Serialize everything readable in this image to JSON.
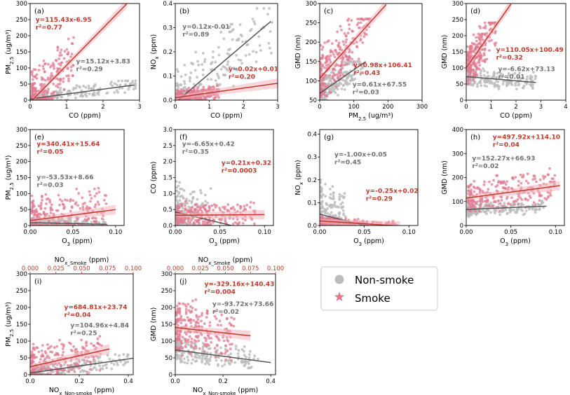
{
  "colors": {
    "smoke_point": "#e07a90",
    "smoke_line": "#c0392b",
    "nonsmoke_point": "#bcbcbc",
    "nonsmoke_line": "#555555",
    "smoke_text": "#c0392b",
    "nonsmoke_text": "#707070"
  },
  "legend": {
    "nonsmoke_label": "Non-smoke",
    "smoke_label": "Smoke"
  },
  "chart_data": [
    {
      "id": "a",
      "type": "scatter",
      "panel_label": "(a)",
      "xlabel": "CO (ppm)",
      "ylabel": "PM2.5 (ug/m³)",
      "ylabel_main": "PM",
      "ylabel_sub": "2.5",
      "ylabel_rest": " (ug/m³)",
      "xlim": [
        0,
        3
      ],
      "ylim": [
        0,
        300
      ],
      "xticks": [
        "0",
        "1",
        "2",
        "3"
      ],
      "yticks": [
        "0",
        "50",
        "100",
        "150",
        "200",
        "250",
        "300"
      ],
      "smoke": {
        "slope": 115.43,
        "intercept": -6.95,
        "line_x": [
          0.06,
          2.65
        ],
        "eq": "y=115.43x-6.95",
        "r2": "r²=0.77",
        "cloud": {
          "x": [
            0.05,
            1.2
          ],
          "ymin": 5,
          "ymax": 240
        }
      },
      "nonsmoke": {
        "slope": 15.12,
        "intercept": 3.83,
        "line_x": [
          0,
          2.85
        ],
        "eq": "y=15.12x+3.83",
        "r2": "r²=0.29",
        "cloud": {
          "x": [
            0.02,
            2.9
          ],
          "ymin": 0,
          "ymax": 60
        }
      }
    },
    {
      "id": "b",
      "type": "scatter",
      "panel_label": "(b)",
      "xlabel": "CO (ppm)",
      "ylabel": "NOx (ppm)",
      "ylabel_main": "NO",
      "ylabel_sub": "x",
      "ylabel_rest": " (ppm)",
      "xlim": [
        0,
        3
      ],
      "ylim": [
        0,
        0.4
      ],
      "xticks": [
        "0",
        "1",
        "2",
        "3"
      ],
      "yticks": [
        "0.0",
        "0.1",
        "0.2",
        "0.3",
        "0.4"
      ],
      "smoke": {
        "slope": 0.02,
        "intercept": 0.01,
        "line_x": [
          0,
          3
        ],
        "eq": "y=0.02x+0.01",
        "r2": "r²=0.20",
        "cloud": {
          "x": [
            0.05,
            1.3
          ],
          "ymin": 0,
          "ymax": 0.08
        }
      },
      "nonsmoke": {
        "slope": 0.12,
        "intercept": -0.01,
        "line_x": [
          0.1,
          2.8
        ],
        "eq": "y=0.12x-0.01",
        "r2": "r²=0.89",
        "cloud": {
          "x": [
            0.05,
            2.9
          ],
          "ymin": 0,
          "ymax": 0.38
        }
      }
    },
    {
      "id": "c",
      "type": "scatter",
      "panel_label": "(c)",
      "xlabel": "PM2.5 (ug/m³)",
      "xlabel_main": "PM",
      "xlabel_sub": "2.5",
      "xlabel_rest": " (ug/m³)",
      "ylabel": "GMD (nm)",
      "xlim": [
        0,
        300
      ],
      "ylim": [
        50,
        300
      ],
      "xticks": [
        "0",
        "100",
        "200",
        "300"
      ],
      "yticks": [
        "50",
        "100",
        "150",
        "200",
        "250",
        "300"
      ],
      "smoke": {
        "slope": 0.98,
        "intercept": 106.41,
        "line_x": [
          0,
          195
        ],
        "eq": "y=0.98x+106.41",
        "r2": "r²=0.43",
        "cloud": {
          "x": [
            2,
            150
          ],
          "ymin": 60,
          "ymax": 260
        }
      },
      "nonsmoke": {
        "slope": 0.61,
        "intercept": 67.55,
        "line_x": [
          0,
          135
        ],
        "eq": "y=0.61x+67.55",
        "r2": "r²=0.03",
        "cloud": {
          "x": [
            2,
            130
          ],
          "ymin": 50,
          "ymax": 150
        }
      }
    },
    {
      "id": "d",
      "type": "scatter",
      "panel_label": "(d)",
      "xlabel": "CO (ppm)",
      "ylabel": "GMD (nm)",
      "xlim": [
        0,
        4
      ],
      "ylim": [
        0,
        300
      ],
      "xticks": [
        "0",
        "1",
        "2",
        "3",
        "4"
      ],
      "yticks": [
        "0",
        "50",
        "100",
        "150",
        "200",
        "250",
        "300"
      ],
      "smoke": {
        "slope": 110.05,
        "intercept": 100.49,
        "line_x": [
          0,
          1.8
        ],
        "eq": "y=110.05x+100.49",
        "r2": "r²=0.32",
        "cloud": {
          "x": [
            0.05,
            1.2
          ],
          "ymin": 50,
          "ymax": 240
        }
      },
      "nonsmoke": {
        "slope": -6.62,
        "intercept": 73.13,
        "line_x": [
          0,
          2.8
        ],
        "eq": "y=-6.62x+73.13",
        "r2": "r²=0.01",
        "cloud": {
          "x": [
            0.05,
            2.8
          ],
          "ymin": 30,
          "ymax": 110
        }
      }
    },
    {
      "id": "e",
      "type": "scatter",
      "panel_label": "(e)",
      "xlabel": "O3 (ppm)",
      "xlabel_main": "O",
      "xlabel_sub": "3",
      "xlabel_rest": " (ppm)",
      "ylabel": "PM2.5 (ug/m³)",
      "ylabel_main": "PM",
      "ylabel_sub": "2.5",
      "ylabel_rest": " (ug/m³)",
      "xlim": [
        0,
        0.11
      ],
      "ylim": [
        0,
        300
      ],
      "xticks": [
        "0.00",
        "0.05",
        "0.10"
      ],
      "xtick_vals": [
        0,
        0.05,
        0.1
      ],
      "yticks": [
        "0",
        "50",
        "100",
        "150",
        "200",
        "250",
        "300"
      ],
      "smoke": {
        "slope": 340.41,
        "intercept": 15.64,
        "line_x": [
          0,
          0.1
        ],
        "eq": "y=340.41x+15.64",
        "r2": "r²=0.05",
        "cloud": {
          "x": [
            0.002,
            0.09
          ],
          "ymin": 0,
          "ymax": 200
        }
      },
      "nonsmoke": {
        "slope": -53.53,
        "intercept": 8.66,
        "line_x": [
          0,
          0.09
        ],
        "eq": "y=-53.53x+8.66",
        "r2": "r²=0.03",
        "cloud": {
          "x": [
            0.002,
            0.09
          ],
          "ymin": 0,
          "ymax": 40
        }
      }
    },
    {
      "id": "f",
      "type": "scatter",
      "panel_label": "(f)",
      "xlabel": "O3 (ppm)",
      "xlabel_main": "O",
      "xlabel_sub": "3",
      "xlabel_rest": " (ppm)",
      "ylabel": "CO (ppm)",
      "xlim": [
        0,
        0.11
      ],
      "ylim": [
        0,
        3.0
      ],
      "xticks": [
        "0.00",
        "0.05",
        "0.10"
      ],
      "xtick_vals": [
        0,
        0.05,
        0.1
      ],
      "yticks": [
        "0.0",
        "0.5",
        "1.0",
        "1.5",
        "2.0",
        "2.5",
        "3.0"
      ],
      "smoke": {
        "slope": 0.21,
        "intercept": 0.32,
        "line_x": [
          0,
          0.1
        ],
        "eq": "y=0.21x+0.32",
        "r2": "r²=0.0003",
        "cloud": {
          "x": [
            0.002,
            0.09
          ],
          "ymin": 0.05,
          "ymax": 1.1
        }
      },
      "nonsmoke": {
        "slope": -6.65,
        "intercept": 0.42,
        "line_x": [
          0,
          0.065
        ],
        "eq": "y=-6.65x+0.42",
        "r2": "r²=0.35",
        "cloud": {
          "x": [
            0.001,
            0.04
          ],
          "ymin": 0,
          "ymax": 2.6
        }
      }
    },
    {
      "id": "g",
      "type": "scatter",
      "panel_label": "(g)",
      "xlabel": "O3 (ppm)",
      "xlabel_main": "O",
      "xlabel_sub": "3",
      "xlabel_rest": " (ppm)",
      "ylabel": "NOx (ppm)",
      "ylabel_main": "NO",
      "ylabel_sub": "x",
      "ylabel_rest": " (ppm)",
      "xlim": [
        0,
        0.11
      ],
      "ylim": [
        0,
        0.42
      ],
      "xticks": [
        "0.00",
        "0.05",
        "0.10"
      ],
      "xtick_vals": [
        0,
        0.05,
        0.1
      ],
      "yticks": [
        "0.0",
        "0.1",
        "0.2",
        "0.3",
        "0.4"
      ],
      "ytick_vals": [
        0,
        0.1,
        0.2,
        0.3,
        0.4
      ],
      "smoke": {
        "slope": -0.25,
        "intercept": 0.02,
        "line_x": [
          0,
          0.09
        ],
        "eq": "y=-0.25x+0.02",
        "r2": "r²=0.29",
        "cloud": {
          "x": [
            0.002,
            0.09
          ],
          "ymin": 0,
          "ymax": 0.05
        }
      },
      "nonsmoke": {
        "slope": -1.0,
        "intercept": 0.05,
        "line_x": [
          0,
          0.05
        ],
        "eq": "y=-1.00x+0.05",
        "r2": "r²=0.45",
        "cloud": {
          "x": [
            0.001,
            0.03
          ],
          "ymin": 0,
          "ymax": 0.38
        }
      }
    },
    {
      "id": "h",
      "type": "scatter",
      "panel_label": "(h)",
      "xlabel": "O3 (ppm)",
      "xlabel_main": "O",
      "xlabel_sub": "3",
      "xlabel_rest": " (ppm)",
      "ylabel": "GMD (nm)",
      "xlim": [
        0,
        0.11
      ],
      "ylim": [
        0,
        400
      ],
      "xticks": [
        "0.00",
        "0.05",
        "0.10"
      ],
      "xtick_vals": [
        0,
        0.05,
        0.1
      ],
      "yticks": [
        "0",
        "100",
        "200",
        "300",
        "400"
      ],
      "smoke": {
        "slope": 497.92,
        "intercept": 114.1,
        "line_x": [
          0,
          0.105
        ],
        "eq": "y=497.92x+114.10",
        "r2": "r²=0.04",
        "cloud": {
          "x": [
            0.002,
            0.1
          ],
          "ymin": 60,
          "ymax": 250
        }
      },
      "nonsmoke": {
        "slope": 152.27,
        "intercept": 66.93,
        "line_x": [
          0,
          0.09
        ],
        "eq": "y=152.27x+66.93",
        "r2": "r²=0.02",
        "cloud": {
          "x": [
            0.002,
            0.09
          ],
          "ymin": 30,
          "ymax": 110
        }
      }
    },
    {
      "id": "i",
      "type": "scatter",
      "panel_label": "(i)",
      "xlabel": "NOx_Non-smoke (ppm)",
      "xlabel_main": "NO",
      "xlabel_sub": "x_Non-smoke",
      "xlabel_rest": " (ppm)",
      "top_xlabel": "NOx_Smoke (ppm)",
      "top_xlabel_main": "NO",
      "top_xlabel_sub": "x_Smoke",
      "top_xlabel_rest": " (ppm)",
      "ylabel": "PM2.5 (ug/m³)",
      "ylabel_main": "PM",
      "ylabel_sub": "2.5",
      "ylabel_rest": " (ug/m³)",
      "xlim": [
        0,
        0.42
      ],
      "top_xlim": [
        0,
        0.1
      ],
      "ylim": [
        0,
        300
      ],
      "xticks": [
        "0.0",
        "0.2",
        "0.4"
      ],
      "xtick_vals": [
        0,
        0.2,
        0.4
      ],
      "top_xticks": [
        "0.000",
        "0.025",
        "0.050",
        "0.075",
        "0.100"
      ],
      "top_xtick_vals": [
        0,
        0.025,
        0.05,
        0.075,
        0.1
      ],
      "yticks": [
        "0",
        "50",
        "100",
        "150",
        "200",
        "250",
        "300"
      ],
      "smoke": {
        "slope": 684.81,
        "intercept": 23.74,
        "line_x": [
          0,
          0.077
        ],
        "axis": "top",
        "eq": "y=684.81x+23.74",
        "r2": "r²=0.04",
        "cloud": {
          "x": [
            0.001,
            0.07
          ],
          "ymin": 0,
          "ymax": 170
        }
      },
      "nonsmoke": {
        "slope": 104.96,
        "intercept": 4.84,
        "line_x": [
          0,
          0.42
        ],
        "eq": "y=104.96x+4.84",
        "r2": "r²=0.25",
        "cloud": {
          "x": [
            0.005,
            0.4
          ],
          "ymin": 0,
          "ymax": 60
        }
      }
    },
    {
      "id": "j",
      "type": "scatter",
      "panel_label": "(j)",
      "xlabel": "NOx_Non-smoke (ppm)",
      "xlabel_main": "NO",
      "xlabel_sub": "x_Non-smoke",
      "xlabel_rest": " (ppm)",
      "top_xlabel": "NOx_Smoke (ppm)",
      "top_xlabel_main": "NO",
      "top_xlabel_sub": "x_Smoke",
      "top_xlabel_rest": " (ppm)",
      "ylabel": "GMD (nm)",
      "xlim": [
        0,
        0.42
      ],
      "top_xlim": [
        0,
        0.1
      ],
      "ylim": [
        0,
        300
      ],
      "xticks": [
        "0.0",
        "0.2",
        "0.4"
      ],
      "xtick_vals": [
        0,
        0.2,
        0.4
      ],
      "top_xticks": [
        "0.000",
        "0.025",
        "0.050",
        "0.075",
        "0.100"
      ],
      "top_xtick_vals": [
        0,
        0.025,
        0.05,
        0.075,
        0.1
      ],
      "yticks": [
        "0",
        "50",
        "100",
        "150",
        "200",
        "250",
        "300"
      ],
      "smoke": {
        "slope": -329.16,
        "intercept": 140.43,
        "line_x": [
          0,
          0.075
        ],
        "axis": "top",
        "eq": "y=-329.16x+140.43",
        "r2": "r²=0.004",
        "cloud": {
          "x": [
            0.001,
            0.06
          ],
          "ymin": 20,
          "ymax": 240
        }
      },
      "nonsmoke": {
        "slope": -93.72,
        "intercept": 73.66,
        "line_x": [
          0,
          0.4
        ],
        "eq": "y=-93.72x+73.66",
        "r2": "r²=0.02",
        "cloud": {
          "x": [
            0.005,
            0.35
          ],
          "ymin": 20,
          "ymax": 120
        }
      }
    }
  ]
}
